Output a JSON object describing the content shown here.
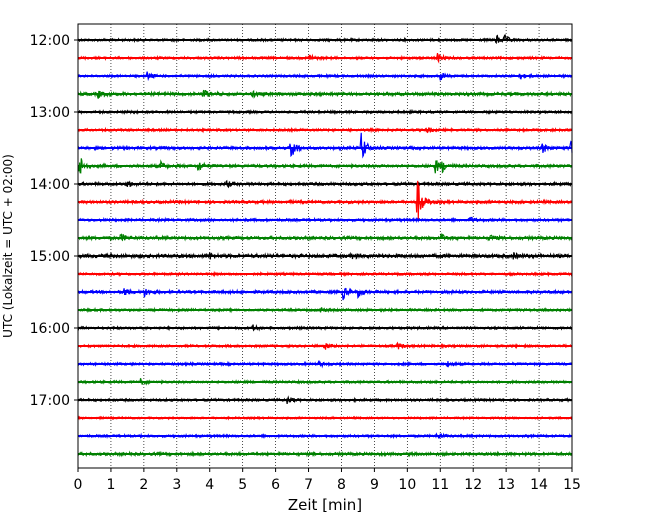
{
  "chart_data": {
    "type": "line",
    "title": "",
    "xlabel": "Zeit  [min]",
    "ylabel": "UTC (Lokalzeit = UTC + 02:00)",
    "xlim": [
      0,
      15
    ],
    "x_ticks": [
      "0",
      "1",
      "2",
      "3",
      "4",
      "5",
      "6",
      "7",
      "8",
      "9",
      "10",
      "11",
      "12",
      "13",
      "14",
      "15"
    ],
    "y_ticks": [
      {
        "label": "12:00",
        "trace": 0
      },
      {
        "label": "13:00",
        "trace": 4
      },
      {
        "label": "14:00",
        "trace": 8
      },
      {
        "label": "15:00",
        "trace": 12
      },
      {
        "label": "16:00",
        "trace": 16
      },
      {
        "label": "17:00",
        "trace": 20
      }
    ],
    "grid": "vertical dotted at each minute",
    "trace_interval_min": 15,
    "color_cycle": [
      "#000000",
      "#ff0000",
      "#0000ff",
      "#008000"
    ],
    "traces": [
      {
        "start": "12:00",
        "color": "#000000",
        "noise": 1.0,
        "events": [
          {
            "t": 12.7,
            "amp": 5
          },
          {
            "t": 12.95,
            "amp": 4
          }
        ]
      },
      {
        "start": "12:15",
        "color": "#ff0000",
        "noise": 1.0,
        "events": [
          {
            "t": 7.0,
            "amp": 4
          },
          {
            "t": 10.9,
            "amp": 5
          }
        ]
      },
      {
        "start": "12:30",
        "color": "#0000ff",
        "noise": 1.0,
        "events": [
          {
            "t": 2.1,
            "amp": 4
          },
          {
            "t": 11.0,
            "amp": 4
          },
          {
            "t": 13.4,
            "amp": 3
          }
        ]
      },
      {
        "start": "12:45",
        "color": "#008000",
        "noise": 1.3,
        "events": [
          {
            "t": 0.6,
            "amp": 4
          },
          {
            "t": 3.8,
            "amp": 5
          },
          {
            "t": 5.3,
            "amp": 3
          }
        ]
      },
      {
        "start": "13:00",
        "color": "#000000",
        "noise": 1.0,
        "events": []
      },
      {
        "start": "13:15",
        "color": "#ff0000",
        "noise": 1.0,
        "events": [
          {
            "t": 10.6,
            "amp": 3
          }
        ]
      },
      {
        "start": "13:30",
        "color": "#0000ff",
        "noise": 1.2,
        "events": [
          {
            "t": 6.45,
            "amp": 14
          },
          {
            "t": 8.6,
            "amp": 16
          },
          {
            "t": 14.1,
            "amp": 5
          },
          {
            "t": 14.95,
            "amp": 14
          }
        ]
      },
      {
        "start": "13:45",
        "color": "#008000",
        "noise": 1.2,
        "events": [
          {
            "t": 0.05,
            "amp": 12
          },
          {
            "t": 2.5,
            "amp": 4
          },
          {
            "t": 3.65,
            "amp": 6
          },
          {
            "t": 10.85,
            "amp": 7
          },
          {
            "t": 11.05,
            "amp": 5
          }
        ]
      },
      {
        "start": "14:00",
        "color": "#000000",
        "noise": 1.2,
        "events": [
          {
            "t": 1.5,
            "amp": 3
          },
          {
            "t": 4.5,
            "amp": 3
          }
        ]
      },
      {
        "start": "14:15",
        "color": "#ff0000",
        "noise": 1.2,
        "events": [
          {
            "t": 10.3,
            "amp": 25
          }
        ]
      },
      {
        "start": "14:30",
        "color": "#0000ff",
        "noise": 1.1,
        "events": [
          {
            "t": 11.9,
            "amp": 3
          }
        ]
      },
      {
        "start": "14:45",
        "color": "#008000",
        "noise": 1.3,
        "events": [
          {
            "t": 1.3,
            "amp": 4
          },
          {
            "t": 11.0,
            "amp": 4
          },
          {
            "t": 12.5,
            "amp": 3
          }
        ]
      },
      {
        "start": "15:00",
        "color": "#000000",
        "noise": 1.5,
        "events": [
          {
            "t": 4.0,
            "amp": 3
          },
          {
            "t": 8.3,
            "amp": 3
          },
          {
            "t": 13.2,
            "amp": 3
          }
        ]
      },
      {
        "start": "15:15",
        "color": "#ff0000",
        "noise": 1.0,
        "events": []
      },
      {
        "start": "15:30",
        "color": "#0000ff",
        "noise": 1.2,
        "events": [
          {
            "t": 1.4,
            "amp": 4
          },
          {
            "t": 2.0,
            "amp": 5
          },
          {
            "t": 8.05,
            "amp": 7
          },
          {
            "t": 8.5,
            "amp": 5
          }
        ]
      },
      {
        "start": "15:45",
        "color": "#008000",
        "noise": 1.0,
        "events": [
          {
            "t": 7.3,
            "amp": 3
          }
        ]
      },
      {
        "start": "16:00",
        "color": "#000000",
        "noise": 1.0,
        "events": [
          {
            "t": 5.3,
            "amp": 3
          }
        ]
      },
      {
        "start": "16:15",
        "color": "#ff0000",
        "noise": 1.0,
        "events": [
          {
            "t": 7.5,
            "amp": 3
          },
          {
            "t": 9.7,
            "amp": 3
          }
        ]
      },
      {
        "start": "16:30",
        "color": "#0000ff",
        "noise": 1.0,
        "events": [
          {
            "t": 7.3,
            "amp": 3
          },
          {
            "t": 11.2,
            "amp": 3
          }
        ]
      },
      {
        "start": "16:45",
        "color": "#008000",
        "noise": 1.0,
        "events": [
          {
            "t": 1.9,
            "amp": 3
          }
        ]
      },
      {
        "start": "17:00",
        "color": "#000000",
        "noise": 1.0,
        "events": [
          {
            "t": 6.35,
            "amp": 4
          }
        ]
      },
      {
        "start": "17:15",
        "color": "#ff0000",
        "noise": 0.8,
        "events": []
      },
      {
        "start": "17:30",
        "color": "#0000ff",
        "noise": 1.0,
        "events": [
          {
            "t": 10.9,
            "amp": 4
          }
        ]
      },
      {
        "start": "17:45",
        "color": "#008000",
        "noise": 1.2,
        "events": []
      }
    ]
  }
}
